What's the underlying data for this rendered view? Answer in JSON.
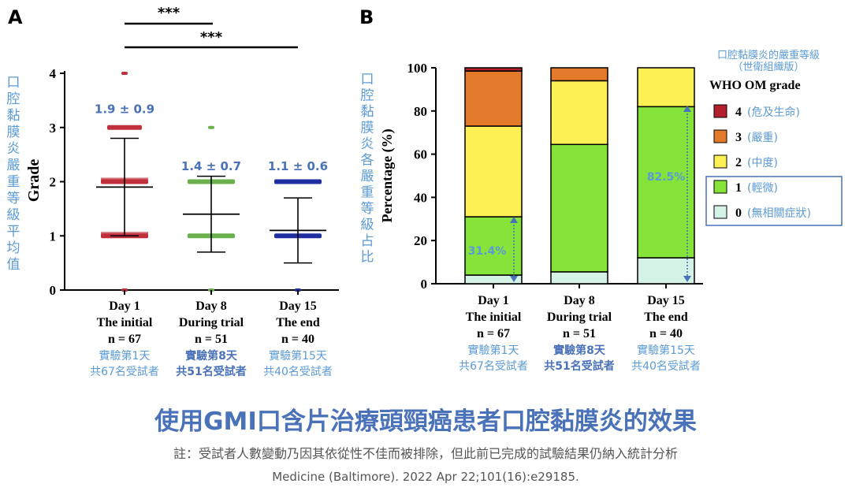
{
  "panels": {
    "a_label": "A",
    "b_label": "B"
  },
  "significance": [
    "***",
    "***"
  ],
  "chart_data": [
    {
      "type": "scatter",
      "panel": "A",
      "ylabel": "Grade",
      "ylabel_zh": "口腔黏膜炎嚴重等級平均值",
      "ylim": [
        0,
        4
      ],
      "yticks": [
        "0",
        "1",
        "2",
        "3",
        "4"
      ],
      "categories": [
        {
          "day": "Day 1",
          "phase": "The initial",
          "n": "n = 67",
          "zh1": "實驗第1天",
          "zh2": "共67名受試者"
        },
        {
          "day": "Day 8",
          "phase": "During trial",
          "n": "n = 51",
          "zh1": "實驗第8天",
          "zh2": "共51名受試者"
        },
        {
          "day": "Day 15",
          "phase": "The end",
          "n": "n = 40",
          "zh1": "實驗第15天",
          "zh2": "共40名受試者"
        }
      ],
      "series": [
        {
          "name": "Day 1",
          "color": "#c0303c",
          "mean": 1.9,
          "sd": 0.9,
          "label": "1.9 ± 0.9",
          "points": [
            0,
            1,
            2,
            3,
            4
          ]
        },
        {
          "name": "Day 8",
          "color": "#6ab04c",
          "mean": 1.4,
          "sd": 0.7,
          "label": "1.4 ± 0.7",
          "points": [
            0,
            1,
            2,
            3
          ]
        },
        {
          "name": "Day 15",
          "color": "#1f2fa0",
          "mean": 1.1,
          "sd": 0.6,
          "label": "1.1 ± 0.6",
          "points": [
            0,
            1,
            2
          ]
        }
      ]
    },
    {
      "type": "bar",
      "stacked": true,
      "panel": "B",
      "ylabel": "Percentage (%)",
      "ylabel_zh": "口腔黏膜炎各嚴重等級占比",
      "ylim": [
        0,
        100
      ],
      "yticks": [
        "0",
        "20",
        "40",
        "60",
        "80",
        "100"
      ],
      "categories": [
        "Day 1",
        "Day 8",
        "Day 15"
      ],
      "legend_title_zh": "口腔黏膜炎的嚴重等級（世衛組織版）",
      "legend_title": "WHO OM grade",
      "legend": [
        {
          "grade": "4",
          "zh": "(危及生命)",
          "color": "#b21f2d"
        },
        {
          "grade": "3",
          "zh": "(嚴重)",
          "color": "#e27a2a"
        },
        {
          "grade": "2",
          "zh": "(中度)",
          "color": "#fdf054"
        },
        {
          "grade": "1",
          "zh": "(輕微)",
          "color": "#86e33a"
        },
        {
          "grade": "0",
          "zh": "(無相關症狀)",
          "color": "#d4f2e6"
        }
      ],
      "series": [
        {
          "name": "0",
          "values": [
            4,
            5.5,
            12
          ]
        },
        {
          "name": "1",
          "values": [
            27,
            59,
            70
          ]
        },
        {
          "name": "2",
          "values": [
            42,
            29.5,
            18
          ]
        },
        {
          "name": "3",
          "values": [
            25.5,
            6,
            0
          ]
        },
        {
          "name": "4",
          "values": [
            1.5,
            0,
            0
          ]
        }
      ],
      "annotations": [
        "31.4%",
        "82.5%"
      ]
    }
  ],
  "footer": {
    "title": "使用GMI口含片治療頭頸癌患者口腔黏膜炎的效果",
    "note": "註：受試者人數變動乃因其依從性不佳而被排除，但此前已完成的試驗結果仍納入統計分析",
    "citation": "Medicine (Baltimore). 2022 Apr 22;101(16):e29185."
  }
}
